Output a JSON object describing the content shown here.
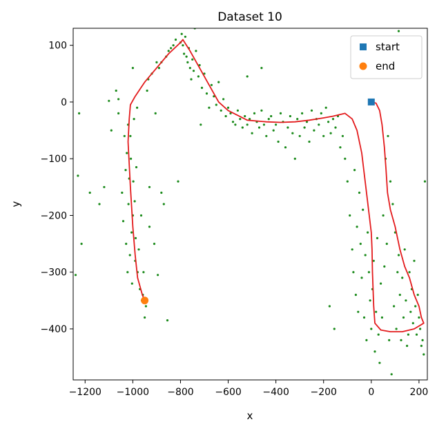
{
  "chart_data": {
    "type": "scatter",
    "title": "Dataset 10",
    "xlabel": "x",
    "ylabel": "y",
    "xlim": [
      -1250,
      235
    ],
    "ylim": [
      -490,
      130
    ],
    "grid": false,
    "legend_position": "top-right",
    "x_ticks": [
      -1200,
      -1000,
      -800,
      -600,
      -400,
      -200,
      0,
      200
    ],
    "x_tick_labels": [
      "−1200",
      "−1000",
      "−800",
      "−600",
      "−400",
      "−200",
      "0",
      "200"
    ],
    "y_ticks": [
      100,
      0,
      -100,
      -200,
      -300,
      -400
    ],
    "y_tick_labels": [
      "100",
      "0",
      "−100",
      "−200",
      "−300",
      "−400"
    ],
    "colors": {
      "path": "#e31a1c",
      "points": "#1a8a1a",
      "start": "#1f77b4",
      "end": "#ff7f0e"
    },
    "series": [
      {
        "name": "start",
        "marker": "square",
        "points": [
          [
            0,
            0
          ]
        ]
      },
      {
        "name": "end",
        "marker": "circle",
        "points": [
          [
            -950,
            -350
          ]
        ]
      }
    ],
    "path": [
      [
        0,
        0
      ],
      [
        20,
        -2
      ],
      [
        35,
        -15
      ],
      [
        45,
        -40
      ],
      [
        55,
        -80
      ],
      [
        62,
        -120
      ],
      [
        68,
        -160
      ],
      [
        80,
        -190
      ],
      [
        100,
        -220
      ],
      [
        120,
        -260
      ],
      [
        140,
        -290
      ],
      [
        160,
        -310
      ],
      [
        180,
        -340
      ],
      [
        200,
        -360
      ],
      [
        210,
        -380
      ],
      [
        220,
        -390
      ],
      [
        180,
        -400
      ],
      [
        130,
        -405
      ],
      [
        80,
        -405
      ],
      [
        40,
        -402
      ],
      [
        15,
        -390
      ],
      [
        10,
        -360
      ],
      [
        5,
        -300
      ],
      [
        3,
        -260
      ],
      [
        0,
        -230
      ],
      [
        -20,
        -160
      ],
      [
        -40,
        -90
      ],
      [
        -60,
        -50
      ],
      [
        -80,
        -30
      ],
      [
        -110,
        -20
      ],
      [
        -160,
        -25
      ],
      [
        -200,
        -28
      ],
      [
        -260,
        -32
      ],
      [
        -320,
        -35
      ],
      [
        -380,
        -36
      ],
      [
        -440,
        -35
      ],
      [
        -520,
        -32
      ],
      [
        -600,
        -15
      ],
      [
        -640,
        0
      ],
      [
        -680,
        30
      ],
      [
        -720,
        60
      ],
      [
        -760,
        90
      ],
      [
        -790,
        110
      ],
      [
        -800,
        105
      ],
      [
        -850,
        85
      ],
      [
        -900,
        60
      ],
      [
        -950,
        35
      ],
      [
        -990,
        10
      ],
      [
        -1010,
        -5
      ],
      [
        -1015,
        -30
      ],
      [
        -1020,
        -70
      ],
      [
        -1010,
        -150
      ],
      [
        -1000,
        -220
      ],
      [
        -990,
        -270
      ],
      [
        -980,
        -310
      ],
      [
        -960,
        -340
      ],
      [
        -950,
        -350
      ]
    ],
    "scatter_points": [
      [
        -1225,
        -20
      ],
      [
        -1240,
        -305
      ],
      [
        -1230,
        -130
      ],
      [
        -1215,
        -250
      ],
      [
        -1180,
        -160
      ],
      [
        -1140,
        -180
      ],
      [
        -1120,
        -150
      ],
      [
        -1090,
        -50
      ],
      [
        -1070,
        20
      ],
      [
        -1060,
        -20
      ],
      [
        -1045,
        -160
      ],
      [
        -1040,
        -210
      ],
      [
        -1035,
        -60
      ],
      [
        -1030,
        -120
      ],
      [
        -1028,
        -250
      ],
      [
        -1025,
        -90
      ],
      [
        -1022,
        -300
      ],
      [
        -1020,
        -40
      ],
      [
        -1018,
        -180
      ],
      [
        -1015,
        -135
      ],
      [
        -1012,
        -270
      ],
      [
        -1010,
        -60
      ],
      [
        -1008,
        -100
      ],
      [
        -1005,
        -230
      ],
      [
        -1003,
        -320
      ],
      [
        -1000,
        -200
      ],
      [
        -998,
        -140
      ],
      [
        -995,
        -30
      ],
      [
        -992,
        -175
      ],
      [
        -990,
        -280
      ],
      [
        -988,
        -240
      ],
      [
        -985,
        -115
      ],
      [
        -982,
        -10
      ],
      [
        -980,
        -300
      ],
      [
        -975,
        -260
      ],
      [
        -970,
        -330
      ],
      [
        -965,
        -200
      ],
      [
        -962,
        -350
      ],
      [
        -958,
        -340
      ],
      [
        -955,
        -300
      ],
      [
        -950,
        -380
      ],
      [
        -945,
        -360
      ],
      [
        -940,
        20
      ],
      [
        -935,
        40
      ],
      [
        -930,
        -150
      ],
      [
        -920,
        50
      ],
      [
        -905,
        -20
      ],
      [
        -900,
        70
      ],
      [
        -895,
        -305
      ],
      [
        -890,
        60
      ],
      [
        -880,
        70
      ],
      [
        -870,
        -180
      ],
      [
        -860,
        80
      ],
      [
        -855,
        -385
      ],
      [
        -850,
        90
      ],
      [
        -840,
        95
      ],
      [
        -830,
        100
      ],
      [
        -820,
        110
      ],
      [
        -810,
        -140
      ],
      [
        -800,
        105
      ],
      [
        -795,
        120
      ],
      [
        -790,
        100
      ],
      [
        -785,
        85
      ],
      [
        -780,
        115
      ],
      [
        -775,
        80
      ],
      [
        -770,
        70
      ],
      [
        -765,
        95
      ],
      [
        -760,
        60
      ],
      [
        -755,
        40
      ],
      [
        -750,
        75
      ],
      [
        -745,
        55
      ],
      [
        -740,
        130
      ],
      [
        -735,
        90
      ],
      [
        -725,
        45
      ],
      [
        -720,
        65
      ],
      [
        -715,
        -40
      ],
      [
        -710,
        25
      ],
      [
        -700,
        50
      ],
      [
        -690,
        15
      ],
      [
        -680,
        -10
      ],
      [
        -670,
        30
      ],
      [
        -660,
        10
      ],
      [
        -650,
        -5
      ],
      [
        -640,
        35
      ],
      [
        -630,
        -15
      ],
      [
        -620,
        5
      ],
      [
        -610,
        -25
      ],
      [
        -600,
        -10
      ],
      [
        -590,
        -20
      ],
      [
        -580,
        -35
      ],
      [
        -570,
        -40
      ],
      [
        -560,
        -15
      ],
      [
        -550,
        -30
      ],
      [
        -540,
        -45
      ],
      [
        -530,
        -25
      ],
      [
        -520,
        -40
      ],
      [
        -510,
        -30
      ],
      [
        -500,
        -55
      ],
      [
        -490,
        -20
      ],
      [
        -480,
        -35
      ],
      [
        -470,
        -45
      ],
      [
        -460,
        -15
      ],
      [
        -450,
        -40
      ],
      [
        -440,
        -60
      ],
      [
        -430,
        -30
      ],
      [
        -420,
        -25
      ],
      [
        -410,
        -50
      ],
      [
        -400,
        -40
      ],
      [
        -390,
        -70
      ],
      [
        -380,
        -20
      ],
      [
        -370,
        -35
      ],
      [
        -360,
        -80
      ],
      [
        -350,
        -45
      ],
      [
        -340,
        -25
      ],
      [
        -330,
        -55
      ],
      [
        -320,
        -100
      ],
      [
        -310,
        -30
      ],
      [
        -300,
        -60
      ],
      [
        -290,
        -20
      ],
      [
        -280,
        -45
      ],
      [
        -270,
        -35
      ],
      [
        -260,
        -70
      ],
      [
        -250,
        -15
      ],
      [
        -240,
        -50
      ],
      [
        -230,
        -30
      ],
      [
        -220,
        -40
      ],
      [
        -210,
        -20
      ],
      [
        -200,
        -60
      ],
      [
        -190,
        -10
      ],
      [
        -180,
        -35
      ],
      [
        -170,
        -55
      ],
      [
        -160,
        -30
      ],
      [
        -150,
        -45
      ],
      [
        -140,
        -25
      ],
      [
        -130,
        -80
      ],
      [
        -120,
        -60
      ],
      [
        -110,
        -100
      ],
      [
        -100,
        -140
      ],
      [
        -90,
        -200
      ],
      [
        -80,
        -260
      ],
      [
        -75,
        -300
      ],
      [
        -70,
        -120
      ],
      [
        -65,
        -340
      ],
      [
        -60,
        -220
      ],
      [
        -55,
        -370
      ],
      [
        -50,
        -160
      ],
      [
        -45,
        -250
      ],
      [
        -40,
        -310
      ],
      [
        -35,
        -190
      ],
      [
        -30,
        -380
      ],
      [
        -25,
        -270
      ],
      [
        -20,
        -420
      ],
      [
        -15,
        -230
      ],
      [
        -10,
        -300
      ],
      [
        -5,
        -350
      ],
      [
        0,
        -400
      ],
      [
        5,
        -330
      ],
      [
        10,
        -280
      ],
      [
        15,
        -440
      ],
      [
        20,
        -370
      ],
      [
        25,
        -240
      ],
      [
        30,
        -410
      ],
      [
        35,
        -460
      ],
      [
        40,
        -320
      ],
      [
        45,
        -380
      ],
      [
        50,
        -200
      ],
      [
        55,
        -290
      ],
      [
        60,
        -100
      ],
      [
        65,
        -250
      ],
      [
        70,
        -60
      ],
      [
        75,
        -420
      ],
      [
        80,
        -140
      ],
      [
        85,
        -480
      ],
      [
        90,
        -180
      ],
      [
        95,
        -360
      ],
      [
        100,
        -230
      ],
      [
        105,
        -400
      ],
      [
        110,
        -300
      ],
      [
        115,
        -270
      ],
      [
        120,
        -340
      ],
      [
        125,
        -420
      ],
      [
        130,
        -310
      ],
      [
        135,
        -380
      ],
      [
        140,
        -260
      ],
      [
        145,
        -350
      ],
      [
        150,
        -430
      ],
      [
        155,
        -410
      ],
      [
        160,
        -300
      ],
      [
        165,
        -370
      ],
      [
        170,
        -330
      ],
      [
        175,
        -390
      ],
      [
        180,
        -280
      ],
      [
        185,
        -360
      ],
      [
        190,
        -410
      ],
      [
        195,
        -340
      ],
      [
        200,
        -380
      ],
      [
        205,
        -400
      ],
      [
        210,
        -430
      ],
      [
        215,
        -420
      ],
      [
        220,
        -445
      ],
      [
        225,
        -140
      ],
      [
        115,
        125
      ],
      [
        -175,
        -360
      ],
      [
        -155,
        -400
      ],
      [
        -460,
        60
      ],
      [
        -520,
        45
      ],
      [
        -1060,
        5
      ],
      [
        -1100,
        2
      ],
      [
        -880,
        -160
      ],
      [
        -910,
        -250
      ],
      [
        -930,
        -220
      ],
      [
        -1000,
        60
      ]
    ]
  }
}
